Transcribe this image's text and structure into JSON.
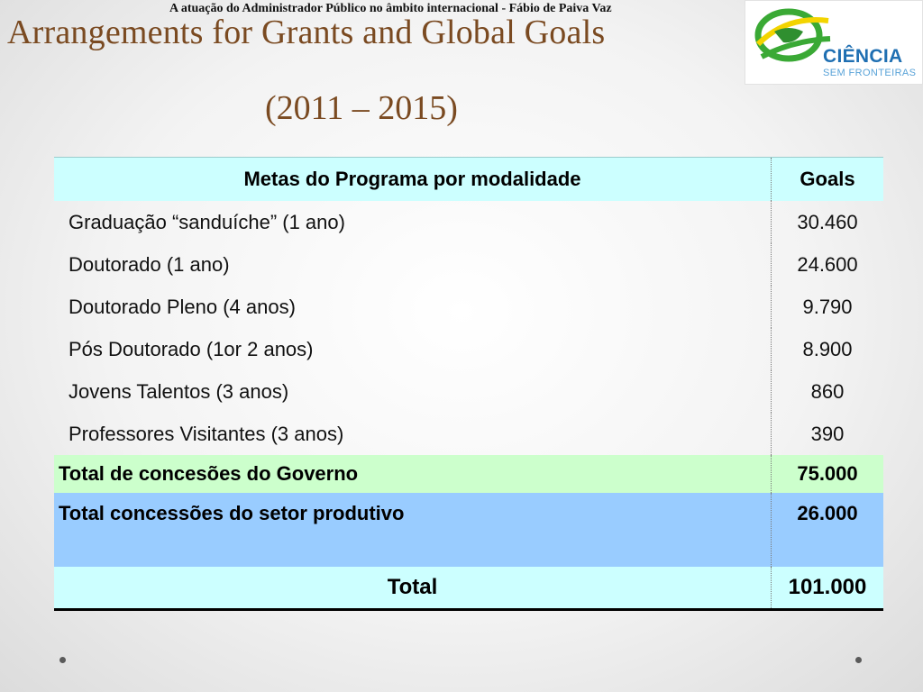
{
  "header": {
    "note": "A atuação do Administrador Público no âmbito internacional - Fábio de Paiva Vaz",
    "title": "Arrangements for Grants and Global Goals",
    "subtitle": "(2011 – 2015)"
  },
  "logo": {
    "name": "CIÊNCIA",
    "tagline": "SEM FRONTEIRAS",
    "colors": {
      "green": "#3aa935",
      "yellow": "#f3d400",
      "blue": "#1f6fb2"
    }
  },
  "table": {
    "headers": {
      "program": "Metas do Programa por modalidade",
      "goals": "Goals"
    },
    "rows": [
      {
        "label": "Graduação “sanduíche” (1 ano)",
        "value": "30.460"
      },
      {
        "label": "Doutorado (1 ano)",
        "value": "24.600"
      },
      {
        "label": "Doutorado Pleno (4 anos)",
        "value": "9.790"
      },
      {
        "label": "Pós Doutorado (1or 2 anos)",
        "value": "8.900"
      },
      {
        "label": "Jovens Talentos (3 anos)",
        "value": "860"
      },
      {
        "label": "Professores  Visitantes (3 anos)",
        "value": "390"
      }
    ],
    "total_government": {
      "label": "Total de concesões do Governo",
      "value": "75.000"
    },
    "total_productive": {
      "label": "Total concessões do setor produtivo",
      "value": "26.000"
    },
    "total": {
      "label": "Total",
      "value": "101.000"
    }
  },
  "colors": {
    "title": "#7a4a21",
    "header_row": "#ccffff",
    "total_gov_row": "#ccffcc",
    "total_prod_row": "#99ccff"
  }
}
